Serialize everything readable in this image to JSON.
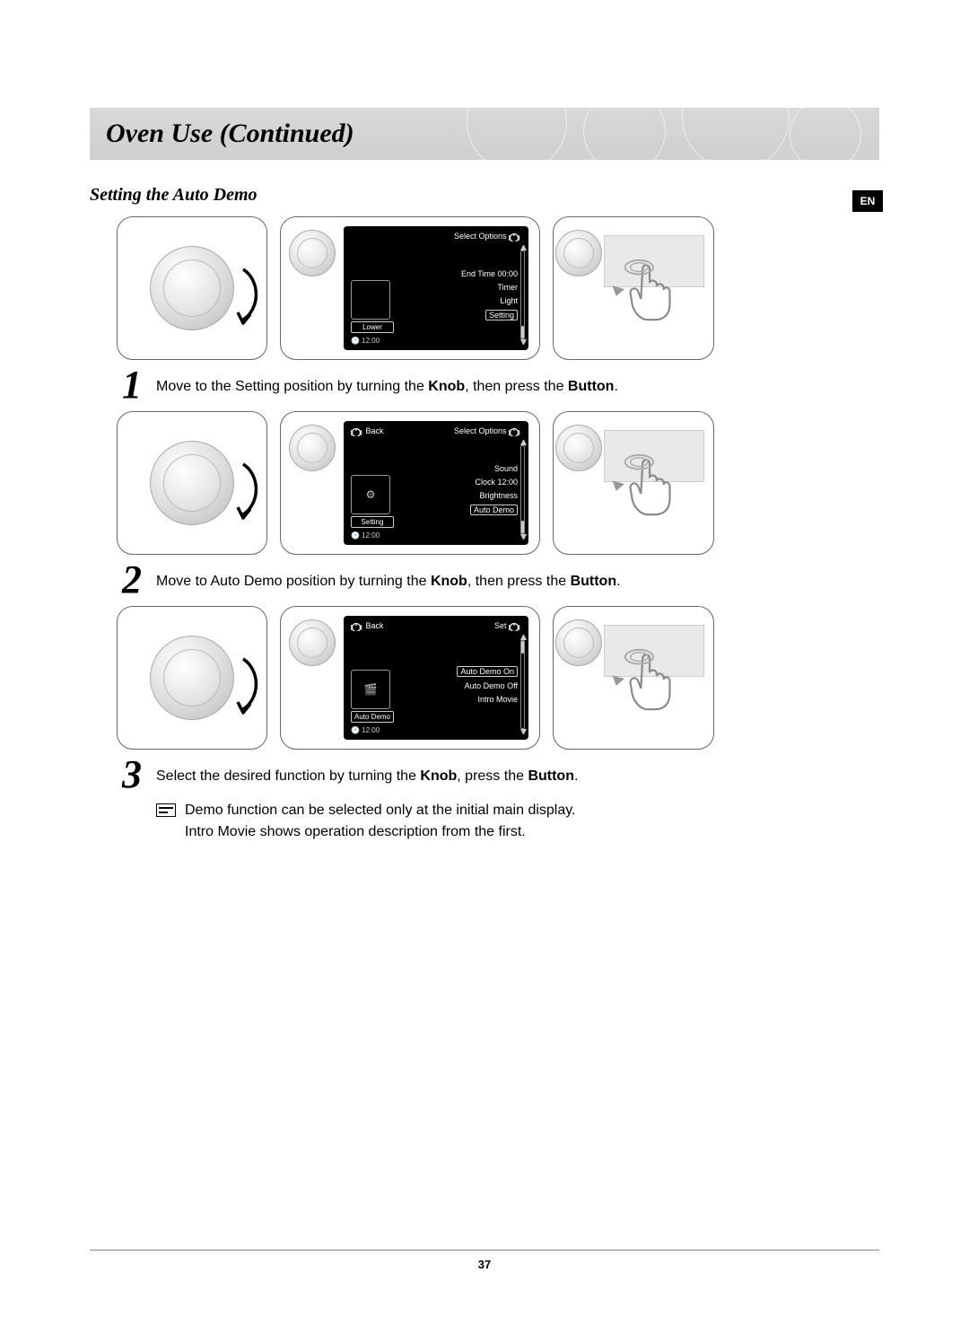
{
  "header": {
    "title": "Oven Use (Continued)"
  },
  "lang_badge": "EN",
  "subheading": "Setting the Auto Demo",
  "page_number": "37",
  "colors": {
    "header_bg_top": "#d8d8d8",
    "header_bg_bottom": "#cfcfcf",
    "display_bg": "#000000",
    "display_text": "#ffffff",
    "panel_border": "#666666",
    "press_screen_bg": "#e9e9e9"
  },
  "steps": [
    {
      "number": "1",
      "text_before": "Move to the Setting position by turning the ",
      "bold1": "Knob",
      "text_mid": ", then press the ",
      "bold2": "Button",
      "text_after": ".",
      "display": {
        "top_left": "",
        "top_right": "Select Options",
        "left_label": "Lower",
        "left_icon": "",
        "clock": "12:00",
        "menu": [
          "End Time 00:00",
          "Timer",
          "Light",
          "Setting"
        ],
        "boxed_index": 3,
        "thumb_pos": "bottom"
      }
    },
    {
      "number": "2",
      "text_before": "Move to Auto Demo position by turning the ",
      "bold1": "Knob",
      "text_mid": ", then press the ",
      "bold2": "Button",
      "text_after": ".",
      "display": {
        "top_left": "Back",
        "top_right": "Select Options",
        "left_label": "Setting",
        "left_icon": "⚙",
        "clock": "12:00",
        "menu": [
          "Sound",
          "Clock 12:00",
          "Brightness",
          "Auto Demo"
        ],
        "boxed_index": 3,
        "thumb_pos": "bottom"
      }
    },
    {
      "number": "3",
      "text_before": "Select the desired function by turning the ",
      "bold1": "Knob",
      "text_mid": ", press the ",
      "bold2": "Button",
      "text_after": ".",
      "display": {
        "top_left": "Back",
        "top_right": "Set",
        "left_label": "Auto Demo",
        "left_icon": "🎬",
        "clock": "12:00",
        "menu": [
          "Auto Demo On",
          "Auto Demo Off",
          "Intro Movie"
        ],
        "boxed_index": 0,
        "thumb_pos": "top"
      },
      "note": "Demo function can be selected only at the initial main display.\nIntro Movie shows operation description from the first."
    }
  ]
}
